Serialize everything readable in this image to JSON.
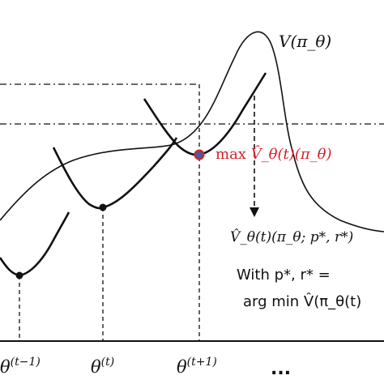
{
  "value_curve_label": "V(π_θ)",
  "max_label_prefix": "max ",
  "max_label_expr": "V̂_θ(t)(π_θ)",
  "surrogate_label": "V̂_θ(t)(π_θ; p*, r*)",
  "with_label": "With p*, r* =",
  "argmin_label": "arg min V̂(π_θ(t)",
  "iterates": [
    {
      "label": "θ(t−1)",
      "base": "θ",
      "sup": "(t−1)"
    },
    {
      "label": "θ(t)",
      "base": "θ",
      "sup": "(t)"
    },
    {
      "label": "θ(t+1)",
      "base": "θ",
      "sup": "(t+1)"
    }
  ],
  "ellipsis": "...",
  "colors": {
    "ink": "#111111",
    "accent": "#d61f26",
    "max_point": "#4a5a9a"
  }
}
